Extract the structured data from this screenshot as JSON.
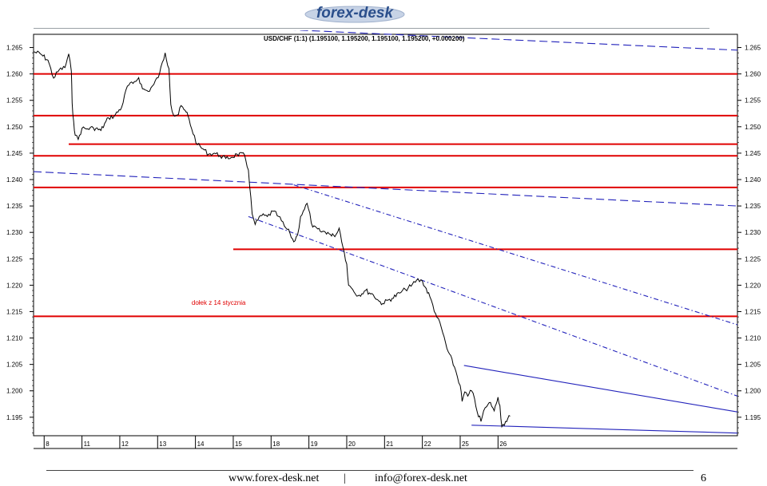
{
  "header": {
    "logo_text": "forex-desk"
  },
  "footer": {
    "website": "www.forex-desk.net",
    "separator": "|",
    "email": "info@forex-desk.net",
    "page_number": "6"
  },
  "chart_data": {
    "type": "line",
    "title": "USD/CHF (1:1) (1.195100, 1.195200, 1.195100, 1.195200, +0.000200)",
    "ylim": [
      1.1915,
      1.2675
    ],
    "yticks": [
      "1.265",
      "1.260",
      "1.255",
      "1.250",
      "1.245",
      "1.240",
      "1.235",
      "1.230",
      "1.225",
      "1.220",
      "1.215",
      "1.210",
      "1.205",
      "1.200",
      "1.195"
    ],
    "yticks_values": [
      1.265,
      1.26,
      1.255,
      1.25,
      1.245,
      1.24,
      1.235,
      1.23,
      1.225,
      1.22,
      1.215,
      1.21,
      1.205,
      1.2,
      1.195
    ],
    "xlim": [
      7.72,
      26.33
    ],
    "xticks": [
      "8",
      "11",
      "12",
      "13",
      "14",
      "15",
      "18",
      "19",
      "20",
      "21",
      "22",
      "25",
      "26"
    ],
    "xtick_positions": [
      8,
      9,
      10,
      11,
      12,
      13,
      14,
      15,
      16,
      17,
      18,
      19,
      20
    ],
    "annotation": {
      "text": "dołek z 14 stycznia",
      "x": 11.9,
      "y": 1.2163
    },
    "grid": false,
    "series": [
      {
        "color": "#000000",
        "x": [
          7.72,
          7.9,
          8.1,
          8.25,
          8.4,
          8.55,
          8.65,
          8.72,
          8.74,
          8.78,
          8.82,
          8.9,
          9.0,
          9.15,
          9.3,
          9.5,
          9.7,
          9.85,
          10.05,
          10.2,
          10.35,
          10.5,
          10.6,
          10.75,
          10.9,
          11.05,
          11.2,
          11.3,
          11.35,
          11.42,
          11.55,
          11.62,
          11.7,
          11.75,
          11.8,
          11.9,
          12.05,
          12.2,
          12.35,
          12.5,
          12.65,
          12.8,
          12.95,
          13.1,
          13.3,
          13.4,
          13.5,
          13.58,
          13.65,
          13.72,
          13.9,
          14.05,
          14.2,
          14.35,
          14.5,
          14.6,
          14.7,
          14.78,
          14.85,
          14.95,
          15.1,
          15.3,
          15.5,
          15.6,
          15.65,
          15.72,
          15.8,
          16.0,
          16.05,
          16.12,
          16.3,
          16.5,
          16.7,
          16.85,
          16.95,
          17.1,
          17.2,
          17.4,
          17.55,
          17.7,
          17.85,
          18.0,
          18.2,
          18.35,
          18.5,
          18.65,
          18.85,
          19.0,
          19.05,
          19.12,
          19.2,
          19.3,
          19.38,
          19.45,
          19.55,
          19.62,
          19.7,
          19.8,
          19.9,
          19.95,
          20.0,
          20.05,
          20.1,
          20.2,
          20.32
        ],
        "y": [
          1.2642,
          1.2638,
          1.2626,
          1.2592,
          1.2608,
          1.2612,
          1.2638,
          1.2605,
          1.2545,
          1.251,
          1.2484,
          1.2476,
          1.2497,
          1.2496,
          1.2498,
          1.2493,
          1.2517,
          1.252,
          1.2537,
          1.2577,
          1.2582,
          1.2593,
          1.2572,
          1.2567,
          1.258,
          1.26,
          1.264,
          1.261,
          1.2542,
          1.2522,
          1.2523,
          1.254,
          1.2532,
          1.2528,
          1.2522,
          1.2496,
          1.2466,
          1.2458,
          1.2448,
          1.245,
          1.2445,
          1.244,
          1.2442,
          1.2448,
          1.2446,
          1.2418,
          1.2335,
          1.2315,
          1.2323,
          1.2332,
          1.233,
          1.234,
          1.233,
          1.2312,
          1.2298,
          1.2282,
          1.2295,
          1.233,
          1.234,
          1.2355,
          1.231,
          1.2302,
          1.23,
          1.2293,
          1.2295,
          1.2296,
          1.2308,
          1.224,
          1.22,
          1.2195,
          1.218,
          1.219,
          1.2182,
          1.217,
          1.2165,
          1.2172,
          1.2175,
          1.2185,
          1.2192,
          1.2198,
          1.221,
          1.2208,
          1.2178,
          1.2146,
          1.212,
          1.208,
          1.2045,
          1.201,
          1.198,
          1.1998,
          1.199,
          1.2,
          1.1985,
          1.196,
          1.1942,
          1.1962,
          1.197,
          1.1978,
          1.1962,
          1.1975,
          1.1988,
          1.1972,
          1.1932,
          1.1942,
          1.1952
        ]
      }
    ],
    "support_resistance_levels": [
      1.26,
      1.2521,
      1.2467,
      1.2445,
      1.2385,
      1.2268,
      1.2141
    ],
    "trendlines": [
      {
        "style": "long-dashed",
        "color": "#2222bb",
        "x": [
          7.72,
          26.33
        ],
        "y": [
          1.2415,
          1.235
        ]
      },
      {
        "style": "long-dashed",
        "color": "#2222bb",
        "x": [
          12.55,
          26.33
        ],
        "y": [
          1.269,
          1.2645
        ]
      },
      {
        "style": "dash-dot",
        "color": "#2222bb",
        "x": [
          14.6,
          26.33
        ],
        "y": [
          1.239,
          1.2125
        ]
      },
      {
        "style": "dash-dot",
        "color": "#2222bb",
        "x": [
          13.4,
          26.33
        ],
        "y": [
          1.233,
          1.199
        ]
      },
      {
        "style": "solid",
        "color": "#2222bb",
        "x": [
          19.1,
          26.33
        ],
        "y": [
          1.2048,
          1.196
        ]
      },
      {
        "style": "solid",
        "color": "#2222bb",
        "x": [
          19.3,
          26.33
        ],
        "y": [
          1.1935,
          1.192
        ]
      }
    ]
  }
}
